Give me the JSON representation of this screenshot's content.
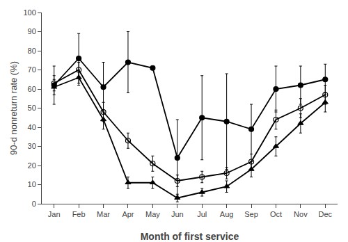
{
  "chart_data": {
    "type": "line",
    "categories": [
      "Jan",
      "Feb",
      "Mar",
      "Apr",
      "May",
      "Jun",
      "Jul",
      "Aug",
      "Sep",
      "Oct",
      "Nov",
      "Dec"
    ],
    "series": [
      {
        "color": "#000000",
        "marker": "circle",
        "line_style": "solid",
        "values": [
          62,
          76,
          61,
          74,
          71,
          24,
          45,
          43,
          39,
          60,
          62,
          65
        ],
        "errors": [
          10,
          13,
          13,
          16,
          0,
          20,
          22,
          25,
          13,
          12,
          10,
          8
        ]
      },
      {
        "color": "#000000",
        "marker": "circle-open",
        "line_style": "solid",
        "values": [
          63,
          70,
          48,
          33,
          21,
          12,
          14,
          16,
          22,
          44,
          50,
          57
        ],
        "errors": [
          4,
          4,
          5,
          4,
          4,
          3,
          3,
          3,
          4,
          5,
          5,
          5
        ]
      },
      {
        "color": "#000000",
        "marker": "triangle-up",
        "line_style": "solid",
        "values": [
          61,
          66,
          44,
          11,
          11,
          3,
          6,
          9,
          18,
          30,
          42,
          53
        ],
        "errors": [
          4,
          4,
          5,
          3,
          3,
          2,
          2,
          3,
          4,
          5,
          5,
          5
        ]
      }
    ],
    "xlabel": "Month of first service",
    "ylabel": "90-d nonreturn rate (%)",
    "ylim": [
      0,
      100
    ],
    "yticks": [
      0,
      10,
      20,
      30,
      40,
      50,
      60,
      70,
      80,
      90,
      100
    ],
    "grid": false
  }
}
